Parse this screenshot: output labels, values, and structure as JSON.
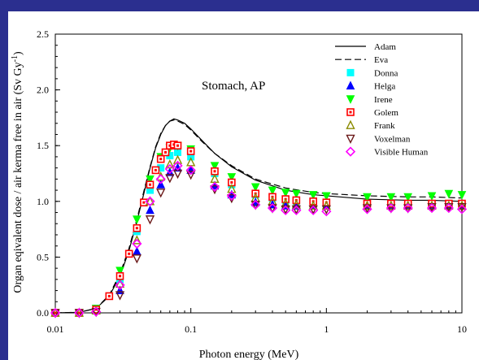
{
  "chart_data": {
    "type": "scatter",
    "annotation": "Stomach, AP",
    "xlabel": "Photon energy (MeV)",
    "ylabel_main": "Organ eqivalent dose / air kerma free in air (Sv Gy",
    "ylabel_sup": "-1",
    "ylabel_close": ")",
    "xscale": "log",
    "xlim": [
      0.01,
      10
    ],
    "ylim": [
      0,
      2.5
    ],
    "xticks": [
      {
        "v": 0.01,
        "label": "0.01"
      },
      {
        "v": 0.1,
        "label": "0.1"
      },
      {
        "v": 1,
        "label": "1"
      },
      {
        "v": 10,
        "label": "10"
      }
    ],
    "yticks": [
      {
        "v": 0.0,
        "label": "0.0"
      },
      {
        "v": 0.5,
        "label": "0.5"
      },
      {
        "v": 1.0,
        "label": "1.0"
      },
      {
        "v": 1.5,
        "label": "1.5"
      },
      {
        "v": 2.0,
        "label": "2.0"
      },
      {
        "v": 2.5,
        "label": "2.5"
      }
    ],
    "grid": false,
    "legend_position": "top-right",
    "lines": [
      {
        "name": "Adam",
        "style": "solid",
        "color": "#000000",
        "x": [
          0.01,
          0.015,
          0.02,
          0.025,
          0.03,
          0.035,
          0.04,
          0.045,
          0.05,
          0.055,
          0.06,
          0.065,
          0.07,
          0.075,
          0.08,
          0.09,
          0.1,
          0.12,
          0.15,
          0.2,
          0.3,
          0.5,
          0.8,
          1,
          2,
          4,
          6,
          10
        ],
        "y": [
          0.0,
          0.005,
          0.04,
          0.15,
          0.33,
          0.56,
          0.82,
          1.07,
          1.3,
          1.48,
          1.6,
          1.68,
          1.72,
          1.74,
          1.73,
          1.7,
          1.65,
          1.55,
          1.43,
          1.31,
          1.19,
          1.1,
          1.06,
          1.05,
          1.02,
          1.01,
          1.01,
          1.0
        ]
      },
      {
        "name": "Eva",
        "style": "dashed",
        "color": "#000000",
        "x": [
          0.01,
          0.015,
          0.02,
          0.025,
          0.03,
          0.035,
          0.04,
          0.045,
          0.05,
          0.055,
          0.06,
          0.065,
          0.07,
          0.075,
          0.08,
          0.09,
          0.1,
          0.12,
          0.15,
          0.2,
          0.3,
          0.5,
          0.8,
          1,
          2,
          4,
          6,
          10
        ],
        "y": [
          0.0,
          0.005,
          0.04,
          0.16,
          0.35,
          0.58,
          0.84,
          1.09,
          1.31,
          1.49,
          1.61,
          1.68,
          1.72,
          1.73,
          1.72,
          1.69,
          1.64,
          1.54,
          1.43,
          1.32,
          1.2,
          1.12,
          1.08,
          1.07,
          1.05,
          1.04,
          1.04,
          1.03
        ]
      }
    ],
    "series": [
      {
        "name": "Donna",
        "marker": "square",
        "color": "#00ffff",
        "x": [
          0.01,
          0.015,
          0.02,
          0.03,
          0.04,
          0.05,
          0.06,
          0.07,
          0.08,
          0.1,
          0.15,
          0.2,
          0.3,
          0.4,
          0.5,
          0.6,
          0.8,
          1,
          2,
          3,
          4,
          6,
          8,
          10
        ],
        "y": [
          0.0,
          0.0,
          0.03,
          0.3,
          0.73,
          1.1,
          1.3,
          1.41,
          1.44,
          1.4,
          1.25,
          1.15,
          1.06,
          1.03,
          1.01,
          1.0,
          1.0,
          0.99,
          0.98,
          0.98,
          0.98,
          0.98,
          0.98,
          0.98
        ]
      },
      {
        "name": "Helga",
        "marker": "triangle-up",
        "color": "#0000ff",
        "x": [
          0.01,
          0.015,
          0.02,
          0.03,
          0.04,
          0.05,
          0.06,
          0.07,
          0.08,
          0.1,
          0.15,
          0.2,
          0.3,
          0.4,
          0.5,
          0.6,
          0.8,
          1,
          2,
          3,
          4,
          6,
          8,
          10
        ],
        "y": [
          0.0,
          0.0,
          0.02,
          0.2,
          0.55,
          0.92,
          1.15,
          1.26,
          1.3,
          1.28,
          1.14,
          1.06,
          0.99,
          0.97,
          0.96,
          0.96,
          0.96,
          0.96,
          0.96,
          0.96,
          0.96,
          0.96,
          0.96,
          0.96
        ]
      },
      {
        "name": "Irene",
        "marker": "triangle-down",
        "color": "#00ff00",
        "x": [
          0.01,
          0.015,
          0.02,
          0.03,
          0.04,
          0.05,
          0.06,
          0.07,
          0.08,
          0.1,
          0.15,
          0.2,
          0.3,
          0.4,
          0.5,
          0.6,
          0.8,
          1,
          2,
          3,
          4,
          6,
          8,
          10
        ],
        "y": [
          0.0,
          0.0,
          0.04,
          0.38,
          0.84,
          1.2,
          1.4,
          1.48,
          1.5,
          1.47,
          1.32,
          1.22,
          1.13,
          1.1,
          1.08,
          1.07,
          1.06,
          1.05,
          1.04,
          1.04,
          1.04,
          1.05,
          1.07,
          1.06
        ]
      },
      {
        "name": "Golem",
        "marker": "square-dot",
        "color": "#ff0000",
        "x": [
          0.01,
          0.015,
          0.02,
          0.025,
          0.03,
          0.035,
          0.04,
          0.045,
          0.05,
          0.055,
          0.06,
          0.065,
          0.07,
          0.075,
          0.08,
          0.1,
          0.15,
          0.2,
          0.3,
          0.4,
          0.5,
          0.6,
          0.8,
          1,
          2,
          3,
          4,
          6,
          8,
          10
        ],
        "y": [
          0.0,
          0.0,
          0.03,
          0.15,
          0.33,
          0.53,
          0.76,
          0.99,
          1.15,
          1.28,
          1.38,
          1.44,
          1.5,
          1.51,
          1.5,
          1.45,
          1.27,
          1.17,
          1.07,
          1.04,
          1.02,
          1.01,
          1.0,
          0.99,
          0.98,
          0.98,
          0.98,
          0.98,
          0.98,
          0.98
        ]
      },
      {
        "name": "Frank",
        "marker": "triangle-up-open",
        "color": "#8b8b00",
        "x": [
          0.01,
          0.015,
          0.02,
          0.03,
          0.04,
          0.05,
          0.06,
          0.07,
          0.08,
          0.1,
          0.15,
          0.2,
          0.3,
          0.4,
          0.5,
          0.6,
          0.8,
          1,
          2,
          3,
          4,
          6,
          8,
          10
        ],
        "y": [
          0.0,
          0.0,
          0.02,
          0.26,
          0.65,
          1.0,
          1.22,
          1.33,
          1.37,
          1.35,
          1.2,
          1.11,
          1.03,
          1.0,
          0.98,
          0.97,
          0.96,
          0.96,
          0.96,
          0.96,
          0.96,
          0.96,
          0.96,
          0.96
        ]
      },
      {
        "name": "Voxelman",
        "marker": "triangle-down-open",
        "color": "#6b1a1a",
        "x": [
          0.01,
          0.015,
          0.02,
          0.03,
          0.04,
          0.05,
          0.06,
          0.07,
          0.08,
          0.1,
          0.15,
          0.2,
          0.3,
          0.4,
          0.5,
          0.6,
          0.8,
          1,
          2,
          3,
          4,
          6,
          8,
          10
        ],
        "y": [
          0.0,
          0.0,
          0.01,
          0.16,
          0.49,
          0.84,
          1.08,
          1.21,
          1.25,
          1.24,
          1.11,
          1.03,
          0.97,
          0.94,
          0.93,
          0.93,
          0.93,
          0.93,
          0.94,
          0.94,
          0.94,
          0.95,
          0.95,
          0.95
        ]
      },
      {
        "name": "Visible Human",
        "marker": "diamond-open",
        "color": "#ff00ff",
        "x": [
          0.01,
          0.015,
          0.02,
          0.03,
          0.04,
          0.05,
          0.06,
          0.07,
          0.08,
          0.1,
          0.15,
          0.2,
          0.3,
          0.4,
          0.5,
          0.6,
          0.8,
          1,
          2,
          3,
          4,
          6,
          8,
          10
        ],
        "y": [
          0.0,
          0.0,
          0.01,
          0.25,
          0.62,
          1.0,
          1.2,
          1.29,
          1.32,
          1.28,
          1.13,
          1.05,
          0.97,
          0.94,
          0.92,
          0.92,
          0.92,
          0.91,
          0.93,
          0.94,
          0.94,
          0.94,
          0.94,
          0.93
        ]
      }
    ]
  }
}
